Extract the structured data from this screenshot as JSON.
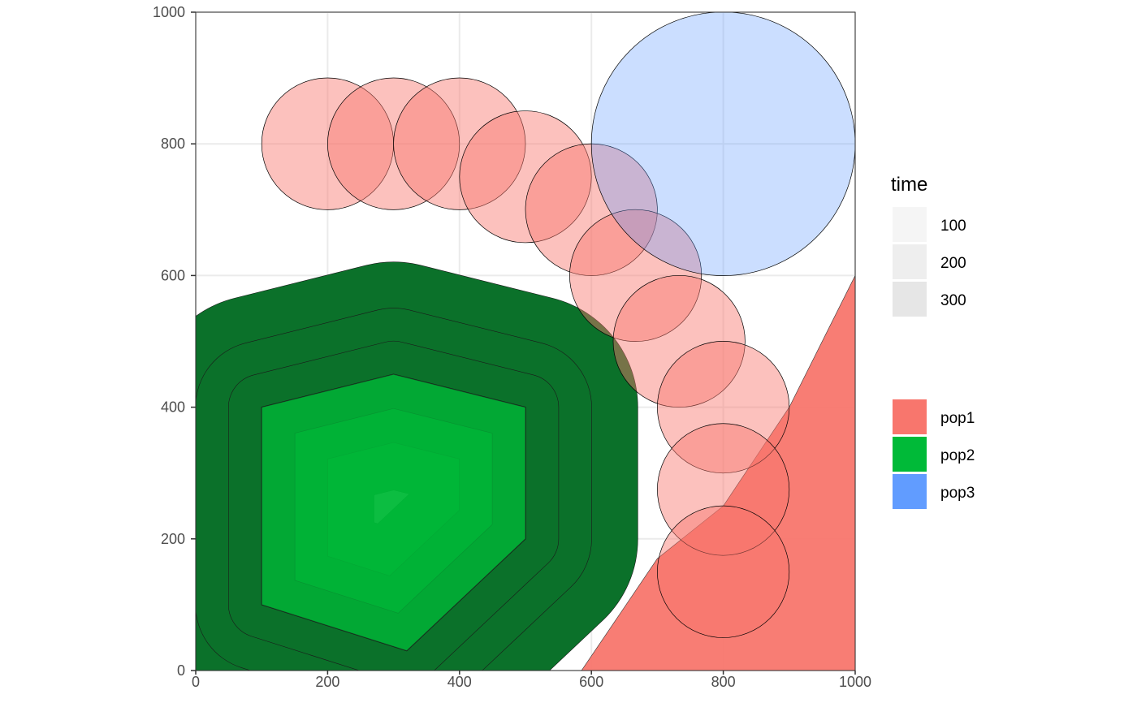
{
  "chart_data": {
    "type": "area",
    "xlim": [
      0,
      1000
    ],
    "ylim": [
      0,
      1000
    ],
    "x_ticks": [
      0,
      200,
      400,
      600,
      800,
      1000
    ],
    "y_ticks": [
      0,
      200,
      400,
      600,
      800,
      1000
    ],
    "grid": true,
    "populations": [
      {
        "name": "pop1",
        "color": "#F8766D"
      },
      {
        "name": "pop2",
        "color": "#00BA38"
      },
      {
        "name": "pop3",
        "color": "#619CFF"
      }
    ],
    "pop1_circles": [
      {
        "x": 200,
        "y": 800,
        "r": 100
      },
      {
        "x": 300,
        "y": 800,
        "r": 100
      },
      {
        "x": 400,
        "y": 800,
        "r": 100
      },
      {
        "x": 500,
        "y": 750,
        "r": 100
      },
      {
        "x": 600,
        "y": 700,
        "r": 100
      },
      {
        "x": 667,
        "y": 600,
        "r": 100
      },
      {
        "x": 733,
        "y": 500,
        "r": 100
      },
      {
        "x": 800,
        "y": 400,
        "r": 100
      },
      {
        "x": 800,
        "y": 275,
        "r": 100
      },
      {
        "x": 800,
        "y": 150,
        "r": 100
      }
    ],
    "pop1_polygon": [
      [
        585,
        0
      ],
      [
        1000,
        0
      ],
      [
        1000,
        600
      ],
      [
        900,
        400
      ],
      [
        800,
        250
      ],
      [
        700,
        170
      ]
    ],
    "pop3_circle": {
      "x": 800,
      "y": 800,
      "r": 200
    },
    "pop2_polygon": [
      [
        100,
        100
      ],
      [
        100,
        400
      ],
      [
        300,
        450
      ],
      [
        500,
        400
      ],
      [
        500,
        200
      ],
      [
        320,
        30
      ]
    ],
    "time_legend": {
      "title": "time",
      "levels": [
        "100",
        "200",
        "300"
      ],
      "colors": [
        "#f5f5f5",
        "#eeeeee",
        "#e6e6e6"
      ]
    }
  }
}
